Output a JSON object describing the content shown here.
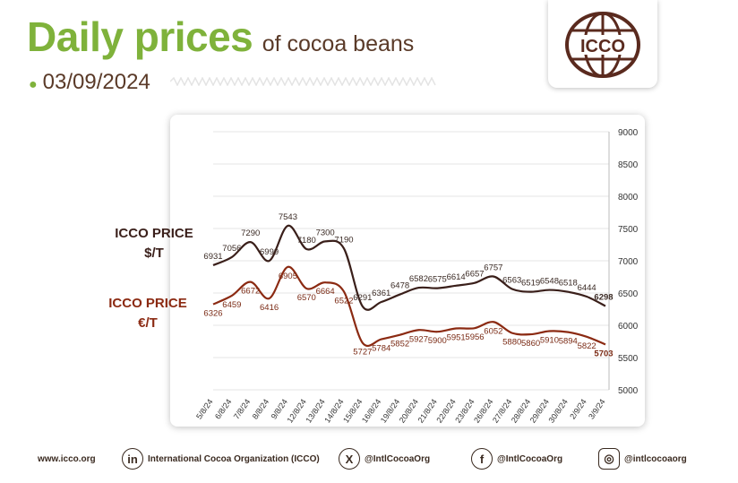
{
  "header": {
    "title_main": "Daily prices",
    "title_sub": "of cocoa beans",
    "date": "03/09/2024",
    "logo_text": "ICCO"
  },
  "series_labels": {
    "usd_line1": "ICCO PRICE",
    "usd_line2": "$/T",
    "eur_line1": "ICCO PRICE",
    "eur_line2": "€/T"
  },
  "footer": {
    "website": "www.icco.org",
    "linkedin": "International Cocoa Organization (ICCO)",
    "x": "@IntlCocoaOrg",
    "facebook": "@IntlCocoaOrg",
    "instagram": "@intlcocoaorg"
  },
  "colors": {
    "usd": "#3a1f1a",
    "eur": "#8b2a12",
    "accent_green": "#7fb23b",
    "brown": "#5a3a28"
  },
  "icons": [
    "linkedin-icon",
    "x-icon",
    "facebook-icon",
    "instagram-icon",
    "icco-globe-logo"
  ],
  "chart_data": {
    "type": "line",
    "title": "",
    "xlabel": "",
    "ylabel": "",
    "ylim": [
      5000,
      9000
    ],
    "yticks": [
      5000,
      5500,
      6000,
      6500,
      7000,
      7500,
      8000,
      8500,
      9000
    ],
    "y_axis_position": "right",
    "grid": true,
    "legend": "left-side labels",
    "categories": [
      "5/8/24",
      "6/8/24",
      "7/8/24",
      "8/8/24",
      "9/8/24",
      "12/8/24",
      "13/8/24",
      "14/8/24",
      "15/8/24",
      "16/8/24",
      "19/8/24",
      "20/8/24",
      "21/8/24",
      "22/8/24",
      "23/8/24",
      "26/8/24",
      "27/8/24",
      "28/8/24",
      "29/8/24",
      "30/8/24",
      "2/9/24",
      "3/9/24"
    ],
    "series": [
      {
        "name": "ICCO PRICE $/T",
        "values": [
          6931,
          7056,
          7290,
          6999,
          7543,
          7180,
          7300,
          7190,
          6291,
          6361,
          6478,
          6582,
          6575,
          6614,
          6657,
          6757,
          6563,
          6519,
          6548,
          6518,
          6444,
          6298
        ]
      },
      {
        "name": "ICCO PRICE €/T",
        "values": [
          6326,
          6459,
          6672,
          6416,
          6905,
          6570,
          6664,
          6522,
          5727,
          5784,
          5852,
          5927,
          5900,
          5951,
          5956,
          6052,
          5880,
          5860,
          5910,
          5894,
          5822,
          5703
        ]
      }
    ]
  }
}
